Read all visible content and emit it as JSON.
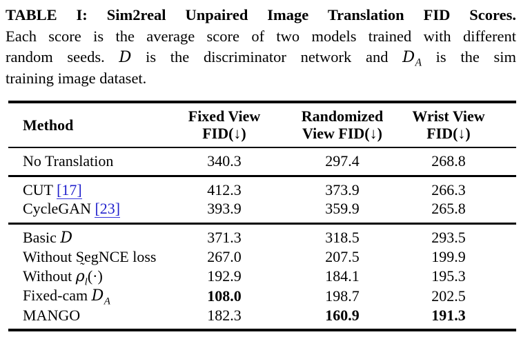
{
  "caption": {
    "line1": "TABLE I: Sim2real Unpaired Image Translation FID Scores.",
    "line2": "Each score is the average score of two models trained with different",
    "line3": {
      "pre": "random seeds. ",
      "D": "D",
      "mid": " is the discriminator network and ",
      "DA": "D",
      "DA_sub": "A",
      "post": " is the sim"
    },
    "line4": "training image dataset."
  },
  "table": {
    "headers": {
      "method": "Method",
      "fixed": [
        "Fixed View",
        "FID(↓)"
      ],
      "randomized": [
        "Randomized",
        "View FID(↓)"
      ],
      "wrist": [
        "Wrist View",
        "FID(↓)"
      ]
    },
    "rows": [
      {
        "method": "No Translation",
        "fixed": "340.3",
        "randomized": "297.4",
        "wrist": "268.8"
      },
      {
        "method": "CUT ",
        "cite": "[17]",
        "fixed": "412.3",
        "randomized": "373.9",
        "wrist": "266.3"
      },
      {
        "method": "CycleGAN ",
        "cite": "[23]",
        "fixed": "393.9",
        "randomized": "359.9",
        "wrist": "265.8"
      },
      {
        "method": "Basic ",
        "math": "D",
        "fixed": "371.3",
        "randomized": "318.5",
        "wrist": "293.5"
      },
      {
        "method": "Without SegNCE loss",
        "fixed": "267.0",
        "randomized": "207.5",
        "wrist": "199.9"
      },
      {
        "method": "Without ",
        "rho": "ρ",
        "tilde": "˜",
        "sub": "l",
        "tail": "(·)",
        "fixed": "192.9",
        "randomized": "184.1",
        "wrist": "195.3"
      },
      {
        "method": "Fixed-cam ",
        "cal": "D",
        "sub": "A",
        "fixed": "108.0",
        "randomized": "198.7",
        "wrist": "202.5"
      },
      {
        "method": "MANGO",
        "fixed": "182.3",
        "randomized": "160.9",
        "wrist": "191.3"
      }
    ]
  },
  "colors": {
    "text": "#000000",
    "citation_link": "#2121cc",
    "rule": "#000000",
    "background": "#ffffff"
  }
}
